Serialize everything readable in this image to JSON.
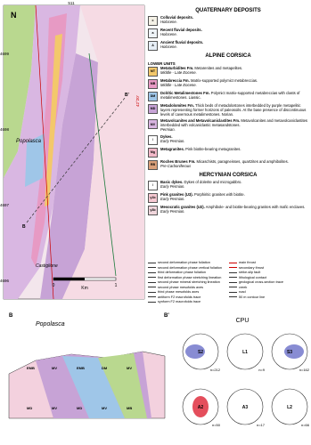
{
  "map": {
    "north": "N",
    "x_coord": "511",
    "y_coords": [
      "4699",
      "4698",
      "4697",
      "4696"
    ],
    "lat": "42°20'",
    "places": [
      "Popolasca",
      "Castiglione"
    ],
    "section_ends": [
      "B",
      "B'"
    ],
    "scale": [
      "0",
      "1",
      "Km"
    ]
  },
  "legend": {
    "sections": [
      {
        "title": "QUATERNARY DEPOSITS",
        "items": [
          {
            "symbol": "c",
            "color": "#f4f1e6",
            "name": "Colluvial deposits.",
            "desc": "",
            "age": "Holocene."
          },
          {
            "symbol": "a",
            "color": "#eef3f7",
            "name": "Recent fluvial deposits.",
            "desc": "",
            "age": "Holocene."
          },
          {
            "symbol": "A",
            "color": "#e6eef6",
            "name": "Ancient fluvial deposits.",
            "desc": "",
            "age": "Holocene."
          }
        ]
      },
      {
        "title": "ALPINE CORSICA",
        "subtitle": "LOWER UNITS",
        "items": [
          {
            "symbol": "MT",
            "color": "#f3c86b",
            "name": "Metaturbidites Fm.",
            "desc": "Metarenites and metapelites.",
            "age": "Middle - Late Eocene."
          },
          {
            "symbol": "MB",
            "color": "#e79ac4",
            "name": "Metabreccia Fm.",
            "desc": "Matrix-supported polymict metabreccias.",
            "age": "Middle - Late Eocene."
          },
          {
            "symbol": "DM",
            "color": "#9fc6e8",
            "name": "Dolritic Metalimestones Fm.",
            "desc": "Polymict matrix-supported metabreccias with clasts of metalimestones. Liassic.",
            "age": ""
          },
          {
            "symbol": "MD",
            "color": "#c7a3d6",
            "name": "Metadolomites Fm.",
            "desc": "Thick beds of metadolostones interbedded by purple metapelitic layers representing former horizons of paleosoils. At the base presence of discontinuous levels of cavernous metalimestones. Norian.",
            "age": ""
          },
          {
            "symbol": "MV",
            "color": "#d8b4e0",
            "name": "Metavolcanites and Metavolcaniclastites Fm.",
            "desc": "Metavolcanites and metavolcaniclastites interbedded with volcaniclastic metasandstones.",
            "age": "Permian."
          },
          {
            "symbol": "/",
            "color": "#ffffff",
            "name": "Dykes.",
            "desc": "",
            "age": "Early Permian."
          },
          {
            "symbol": "Mg",
            "color": "#f2b8c8",
            "name": "Metagranites.",
            "desc": "Pink biotite-bearing metagranites.",
            "age": ""
          },
          {
            "symbol": "RB",
            "color": "#d9a07a",
            "name": "Roches Brunes Fm.",
            "desc": "Micaschists, paragneisses, quartzites and amphibolites.",
            "age": "Pre-Carboniferous"
          }
        ]
      },
      {
        "title": "HERCYNIAN CORSICA",
        "items": [
          {
            "symbol": "/",
            "color": "#ffffff",
            "name": "Basic dykes.",
            "desc": "Dykes of dolerite and microgabbro.",
            "age": "Early Permian."
          },
          {
            "symbol": "γ1b",
            "color": "#f6c9d2",
            "name": "Pink granites (U3).",
            "desc": "Porphiritic granites with biotite.",
            "age": "Early Permian."
          },
          {
            "symbol": "γ3b",
            "color": "#f0d6dc",
            "name": "Mesocratic granites (U2).",
            "desc": "Amphibole- and biotite-bearing granites with mafic enclaves.",
            "age": "Early Permian."
          }
        ]
      }
    ]
  },
  "symbols": {
    "left": [
      "second deformation phase foliation",
      "second deformation phase vertical foliation",
      "third deformation phase foliation",
      "first deformation phase stretching lineation",
      "second phase mineral stretching lineation",
      "second phase mesofolds axes",
      "third phase mesofolds axes",
      "antiform F2 macrofolds trace",
      "synform F2 macrofolds trace"
    ],
    "right": [
      "main thrust",
      "secondary thrust",
      "strike-slip fault",
      "lithological contact",
      "geological cross-section trace",
      "creek",
      "road",
      "50 m contour line"
    ]
  },
  "section": {
    "ends": [
      "B",
      "B'"
    ],
    "place": "Popolasca",
    "units": [
      "EMB",
      "MV",
      "EMB",
      "DM",
      "MV",
      "MD",
      "MV",
      "MD",
      "MV",
      "MB"
    ]
  },
  "stereonets": {
    "title": "CPU",
    "nets": [
      {
        "label": "S2",
        "n": "n=212"
      },
      {
        "label": "L1",
        "n": "n=9"
      },
      {
        "label": "S3",
        "n": "n=162"
      },
      {
        "label": "A2",
        "n": "n=50"
      },
      {
        "label": "A3",
        "n": "n=17"
      },
      {
        "label": "L2",
        "n": "n=66"
      }
    ]
  }
}
